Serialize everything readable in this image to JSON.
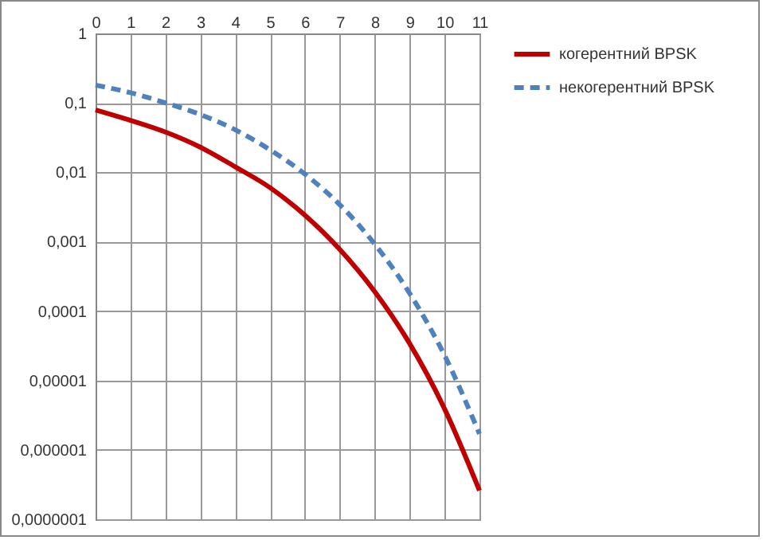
{
  "chart_data": {
    "type": "line",
    "x": [
      0,
      1,
      2,
      3,
      4,
      5,
      6,
      7,
      8,
      9,
      10,
      11
    ],
    "series": [
      {
        "name": "когерентний BPSK",
        "color": "#c00000",
        "line_style": "solid",
        "values": [
          0.079,
          0.056,
          0.038,
          0.023,
          0.012,
          0.006,
          0.0024,
          0.00077,
          0.00019,
          3.4e-05,
          3.9e-06,
          2.6e-07
        ]
      },
      {
        "name": "некогерентний BPSK",
        "color": "#4f81bd",
        "line_style": "dashed",
        "values": [
          0.18,
          0.14,
          0.1,
          0.068,
          0.041,
          0.021,
          0.0094,
          0.0034,
          0.00092,
          0.00018,
          2.3e-05,
          1.7e-06
        ]
      }
    ],
    "log": "y",
    "xlim": [
      0,
      11
    ],
    "xticks": [
      0,
      1,
      2,
      3,
      4,
      5,
      6,
      7,
      8,
      9,
      10,
      11
    ],
    "ylim": [
      1e-07,
      1
    ],
    "yticks": [
      {
        "value": 1e-07,
        "label": "0,0000001"
      },
      {
        "value": 1e-06,
        "label": "0,000001"
      },
      {
        "value": 1e-05,
        "label": "0,00001"
      },
      {
        "value": 0.0001,
        "label": "0,0001"
      },
      {
        "value": 0.001,
        "label": "0,001"
      },
      {
        "value": 0.01,
        "label": "0,01"
      },
      {
        "value": 0.1,
        "label": "0,1"
      },
      1
    ],
    "grid": true,
    "legend": "right",
    "marker": "none"
  }
}
